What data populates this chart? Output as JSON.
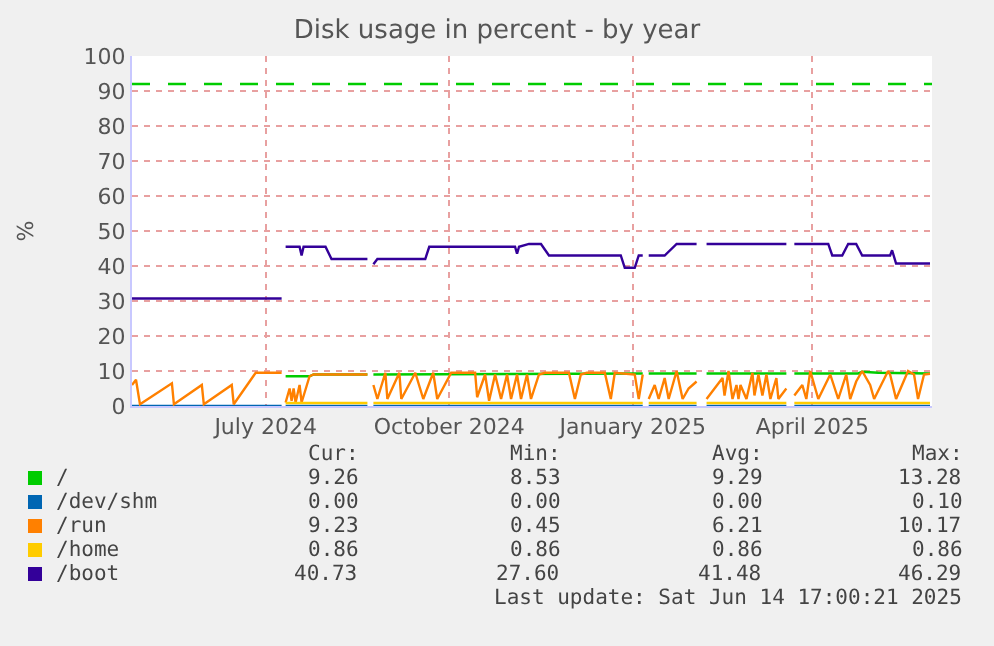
{
  "chart_data": {
    "type": "line",
    "title": "Disk usage in percent - by year",
    "ylabel": "%",
    "xlim": [
      "2024-04-25",
      "2025-05-31"
    ],
    "xticks": [
      {
        "value": "2024-07-01",
        "label": "July 2024"
      },
      {
        "value": "2024-10-01",
        "label": "October 2024"
      },
      {
        "value": "2025-01-01",
        "label": "January 2025"
      },
      {
        "value": "2025-04-01",
        "label": "April 2025"
      }
    ],
    "ylim": [
      0,
      100
    ],
    "yticks": [
      0,
      10,
      20,
      30,
      40,
      50,
      60,
      70,
      80,
      90,
      100
    ],
    "grid": true,
    "legend": "bottom left",
    "marker": "none",
    "line_style": "solid",
    "ref_lines": [
      {
        "axis": "y",
        "value": 92,
        "color": "#00cc00",
        "line_style": "dashed"
      }
    ],
    "series": [
      {
        "name": "/",
        "color": "#00cc00",
        "x": [
          "2024-07-11",
          "2024-07-23",
          "2024-07-25",
          "2024-08-21",
          "2024-08-22",
          "2024-08-24",
          "2025-01-06",
          "2025-01-07",
          "2025-01-09",
          "2025-02-02",
          "2025-02-04",
          "2025-02-07",
          "2025-03-19",
          "2025-03-21",
          "2025-03-23",
          "2025-04-24",
          "2025-04-26",
          "2025-05-04",
          "2025-05-30"
        ],
        "values": [
          8.5,
          8.5,
          9,
          9,
          null,
          9,
          9.3,
          null,
          9.3,
          9.3,
          null,
          9.3,
          9.3,
          null,
          9.3,
          9.3,
          9.8,
          9.5,
          9.3
        ]
      },
      {
        "name": "/dev/shm",
        "color": "#0066b3",
        "x": [
          "2024-04-25",
          "2024-07-09",
          "2024-07-10",
          "2024-07-11",
          "2024-08-21",
          "2024-08-22",
          "2024-08-24",
          "2025-01-06",
          "2025-01-07",
          "2025-01-09",
          "2025-02-02",
          "2025-02-04",
          "2025-02-07",
          "2025-03-19",
          "2025-03-21",
          "2025-03-23",
          "2025-05-30"
        ],
        "values": [
          0,
          0,
          null,
          0,
          0,
          null,
          0,
          0,
          null,
          0,
          0,
          null,
          0,
          0,
          null,
          0,
          0
        ]
      },
      {
        "name": "/run",
        "color": "#ff8000",
        "x": [
          "2024-04-25",
          "2024-04-27",
          "2024-04-29",
          "2024-05-15",
          "2024-05-16",
          "2024-05-30",
          "2024-05-31",
          "2024-06-14",
          "2024-06-15",
          "2024-06-26",
          "2024-07-09",
          "2024-07-10",
          "2024-07-11",
          "2024-07-13",
          "2024-07-14",
          "2024-07-15",
          "2024-07-16",
          "2024-07-18",
          "2024-07-19",
          "2024-07-23",
          "2024-07-25",
          "2024-08-21",
          "2024-08-22",
          "2024-08-24",
          "2024-08-26",
          "2024-08-30",
          "2024-08-31",
          "2024-09-06",
          "2024-09-07",
          "2024-09-14",
          "2024-09-18",
          "2024-09-23",
          "2024-09-25",
          "2024-10-02",
          "2024-10-14",
          "2024-10-15",
          "2024-10-19",
          "2024-10-21",
          "2024-10-24",
          "2024-10-27",
          "2024-10-30",
          "2024-11-01",
          "2024-11-04",
          "2024-11-06",
          "2024-11-09",
          "2024-11-11",
          "2024-11-15",
          "2024-11-18",
          "2024-11-30",
          "2024-12-03",
          "2024-12-06",
          "2024-12-09",
          "2024-12-18",
          "2024-12-21",
          "2024-12-23",
          "2025-01-02",
          "2025-01-04",
          "2025-01-06",
          "2025-01-07",
          "2025-01-09",
          "2025-01-12",
          "2025-01-14",
          "2025-01-17",
          "2025-01-19",
          "2025-01-23",
          "2025-01-26",
          "2025-01-29",
          "2025-02-02",
          "2025-02-04",
          "2025-02-07",
          "2025-02-15",
          "2025-02-16",
          "2025-02-18",
          "2025-02-20",
          "2025-02-22",
          "2025-02-23",
          "2025-02-24",
          "2025-02-27",
          "2025-03-02",
          "2025-03-03",
          "2025-03-05",
          "2025-03-07",
          "2025-03-09",
          "2025-03-11",
          "2025-03-14",
          "2025-03-15",
          "2025-03-19",
          "2025-03-21",
          "2025-03-23",
          "2025-03-27",
          "2025-03-29",
          "2025-03-31",
          "2025-04-04",
          "2025-04-10",
          "2025-04-14",
          "2025-04-18",
          "2025-04-20",
          "2025-04-23",
          "2025-04-26",
          "2025-04-30",
          "2025-05-02",
          "2025-05-09",
          "2025-05-10",
          "2025-05-13",
          "2025-05-19",
          "2025-05-22",
          "2025-05-24",
          "2025-05-27",
          "2025-05-30"
        ],
        "values": [
          6,
          7.5,
          0.5,
          6.5,
          0.5,
          6,
          0.5,
          6,
          0.5,
          9.5,
          9.5,
          null,
          1,
          5,
          1.5,
          5,
          1,
          6,
          1,
          8.5,
          9,
          9,
          null,
          6,
          2,
          9.5,
          2,
          9.5,
          2,
          9.5,
          2,
          9.5,
          2,
          9.5,
          9.5,
          2.5,
          9,
          1.5,
          9,
          2,
          9,
          2,
          9,
          2,
          9,
          2,
          9,
          9.5,
          9.5,
          2,
          9,
          9.5,
          9.5,
          2,
          9.5,
          9,
          2,
          9,
          null,
          2,
          6,
          2,
          8,
          2,
          10,
          2,
          5,
          7,
          null,
          2,
          8,
          3,
          10,
          2,
          6,
          2,
          6,
          2,
          9.5,
          3,
          9,
          3,
          9,
          2,
          8,
          2,
          5,
          null,
          3,
          6,
          2,
          10,
          2,
          9,
          2,
          9,
          2,
          7,
          10,
          6,
          2,
          10,
          9,
          2,
          10,
          9,
          2,
          9,
          9.2
        ]
      },
      {
        "name": "/home",
        "color": "#ffcc00",
        "x": [
          "2024-07-11",
          "2024-08-21",
          "2024-08-22",
          "2024-08-24",
          "2025-01-06",
          "2025-01-07",
          "2025-01-09",
          "2025-02-02",
          "2025-02-04",
          "2025-02-07",
          "2025-03-19",
          "2025-03-21",
          "2025-03-23",
          "2025-05-30"
        ],
        "values": [
          0.86,
          0.86,
          null,
          0.86,
          0.86,
          null,
          0.86,
          0.86,
          null,
          0.86,
          0.86,
          null,
          0.86,
          0.86
        ]
      },
      {
        "name": "/boot",
        "color": "#330099",
        "x": [
          "2024-04-25",
          "2024-07-09",
          "2024-07-10",
          "2024-07-11",
          "2024-07-18",
          "2024-07-19",
          "2024-07-20",
          "2024-07-31",
          "2024-08-03",
          "2024-08-21",
          "2024-08-22",
          "2024-08-24",
          "2024-08-26",
          "2024-09-19",
          "2024-09-21",
          "2024-11-03",
          "2024-11-04",
          "2024-11-05",
          "2024-11-10",
          "2024-11-16",
          "2024-11-20",
          "2024-12-26",
          "2024-12-28",
          "2025-01-02",
          "2025-01-04",
          "2025-01-06",
          "2025-01-07",
          "2025-01-09",
          "2025-01-17",
          "2025-01-23",
          "2025-02-02",
          "2025-02-04",
          "2025-02-07",
          "2025-03-19",
          "2025-03-21",
          "2025-03-23",
          "2025-04-09",
          "2025-04-11",
          "2025-04-16",
          "2025-04-19",
          "2025-04-23",
          "2025-04-26",
          "2025-05-10",
          "2025-05-11",
          "2025-05-13",
          "2025-05-30"
        ],
        "values": [
          30.7,
          30.7,
          null,
          45.5,
          45.5,
          43,
          45.5,
          45.5,
          42,
          42,
          null,
          40.5,
          42,
          42,
          45.5,
          45.5,
          43.5,
          45.5,
          46.3,
          46.3,
          43,
          43,
          39.5,
          39.5,
          43,
          43,
          null,
          43,
          43,
          46.3,
          46.3,
          null,
          46.3,
          46.3,
          null,
          46.3,
          46.3,
          43,
          43,
          46.3,
          46.3,
          43,
          43,
          44.5,
          40.7,
          40.7
        ]
      }
    ],
    "annotations": [
      "Cur:",
      "Min:",
      "Avg:",
      "Max:",
      "9.26",
      "8.53",
      "9.29",
      "13.28",
      "0.00",
      "0.00",
      "0.00",
      "0.10",
      "9.23",
      "0.45",
      "6.21",
      "10.17",
      "0.86",
      "0.86",
      "0.86",
      "0.86",
      "40.73",
      "27.60",
      "41.48",
      "46.29",
      "Last update: Sat Jun 14 17:00:21 2025"
    ]
  }
}
